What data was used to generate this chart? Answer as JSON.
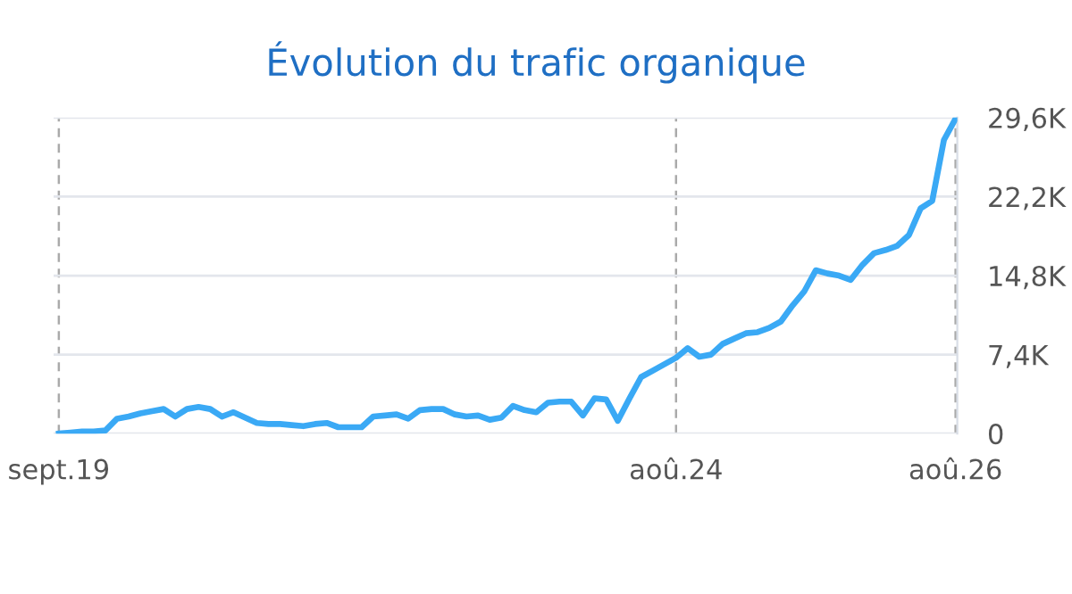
{
  "chart_data": {
    "type": "line",
    "title": "Évolution du trafic organique",
    "categories": [
      "sept.19",
      null,
      null,
      null,
      null,
      null,
      null,
      null,
      null,
      null,
      null,
      null,
      null,
      null,
      null,
      null,
      null,
      null,
      null,
      null,
      null,
      null,
      null,
      null,
      null,
      null,
      null,
      null,
      null,
      null,
      null,
      null,
      null,
      null,
      null,
      null,
      null,
      null,
      null,
      null,
      null,
      null,
      null,
      null,
      null,
      null,
      null,
      null,
      null,
      null,
      null,
      null,
      null,
      "aoû.24",
      null,
      null,
      null,
      null,
      null,
      null,
      null,
      null,
      null,
      null,
      null,
      null,
      null,
      null,
      null,
      null,
      null,
      null,
      null,
      null,
      null,
      null,
      null,
      "aoû.26"
    ],
    "series": [
      {
        "color": "#3aa9f5",
        "values": [
          0,
          0.1,
          0.2,
          0.2,
          0.3,
          1.4,
          1.6,
          1.9,
          2.1,
          2.3,
          1.6,
          2.3,
          2.5,
          2.3,
          1.6,
          2.0,
          1.5,
          1.0,
          0.9,
          0.9,
          0.8,
          0.7,
          0.9,
          1.0,
          0.6,
          0.6,
          0.6,
          1.6,
          1.7,
          1.8,
          1.4,
          2.2,
          2.3,
          2.3,
          1.8,
          1.6,
          1.7,
          1.3,
          1.5,
          2.6,
          2.2,
          2.0,
          2.9,
          3.0,
          3.0,
          1.7,
          3.3,
          3.2,
          1.2,
          3.3,
          5.3,
          5.9,
          6.5,
          7.1,
          8.0,
          7.2,
          7.4,
          8.4,
          8.9,
          9.4,
          9.5,
          9.9,
          10.5,
          12.0,
          13.3,
          15.3,
          15.0,
          14.8,
          14.4,
          15.8,
          16.9,
          17.2,
          17.6,
          18.6,
          21.1,
          21.8,
          27.5,
          29.5
        ]
      }
    ],
    "ylim": [
      0,
      29.6
    ],
    "yticks": [
      0,
      {
        "value": 7.4,
        "label": "7,4K"
      },
      {
        "value": 14.8,
        "label": "14,8K"
      },
      {
        "value": 22.2,
        "label": "22,2K"
      },
      {
        "value": 29.6,
        "label": "29,6K"
      }
    ],
    "grid": true,
    "legend": false,
    "marker": "none",
    "line_style": "solid"
  }
}
